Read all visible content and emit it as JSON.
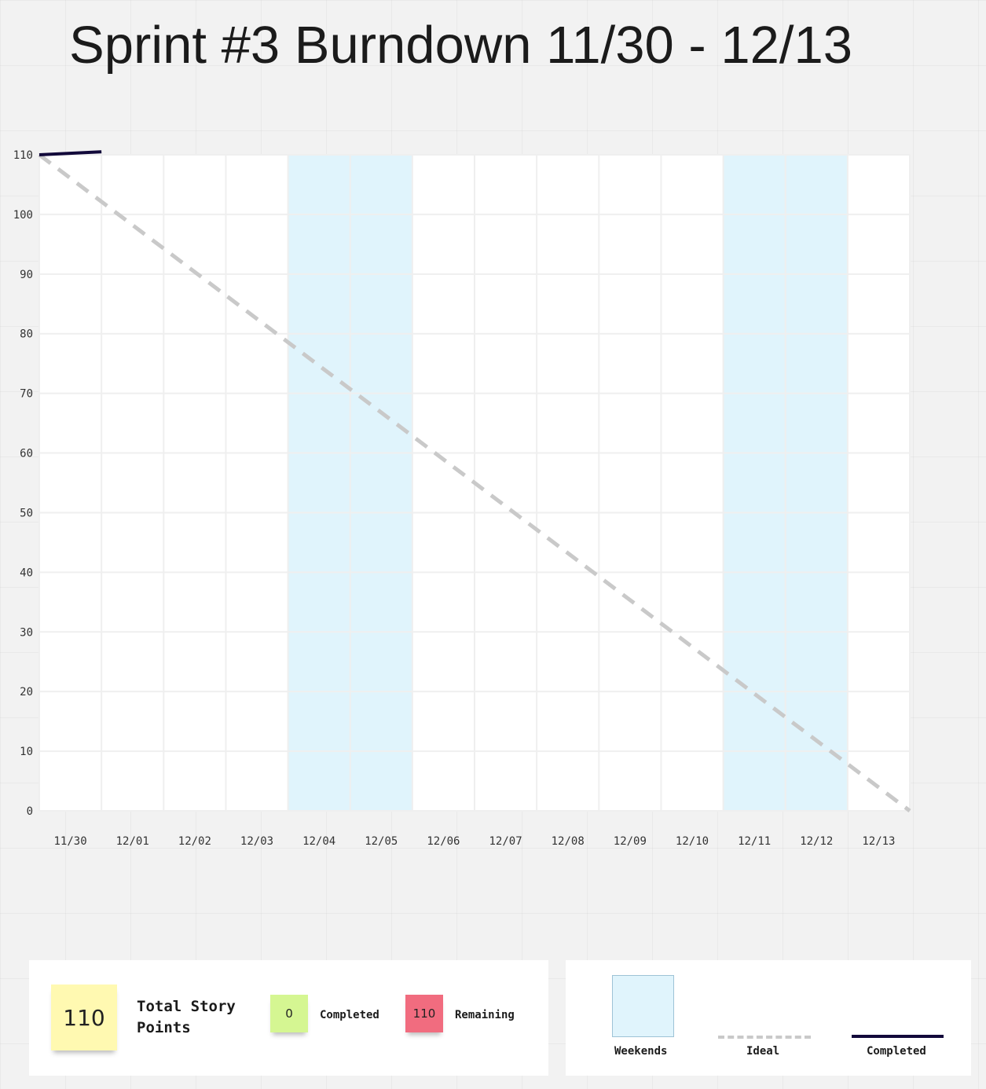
{
  "title": "Sprint #3 Burndown 11/30 - 12/13",
  "chart_data": {
    "type": "line",
    "title": "Sprint #3 Burndown 11/30 - 12/13",
    "xlabel": "",
    "ylabel": "",
    "categories": [
      "11/30",
      "12/01",
      "12/02",
      "12/03",
      "12/04",
      "12/05",
      "12/06",
      "12/07",
      "12/08",
      "12/09",
      "12/10",
      "12/11",
      "12/12",
      "12/13"
    ],
    "yticks": [
      0,
      10,
      20,
      30,
      40,
      50,
      60,
      70,
      80,
      90,
      100,
      110
    ],
    "ylim": [
      0,
      110
    ],
    "grid": true,
    "weekend_days": [
      "12/04",
      "12/05",
      "12/11",
      "12/12"
    ],
    "series": [
      {
        "name": "Ideal",
        "style": "dashed",
        "color": "#c9c9c9",
        "x": [
          "11/30",
          "12/13"
        ],
        "values": [
          110,
          0
        ],
        "x_end_edge": true
      },
      {
        "name": "Completed",
        "style": "solid",
        "color": "#12093a",
        "x": [
          "11/30",
          "12/01"
        ],
        "values": [
          110,
          110.5
        ]
      }
    ],
    "colors": {
      "weekend": "#e0f4fc",
      "grid": "#efefef",
      "plot_background": "#ffffff"
    }
  },
  "summary": {
    "total_value": "110",
    "total_label": "Total Story Points",
    "completed_value": "0",
    "completed_label": "Completed",
    "remaining_value": "110",
    "remaining_label": "Remaining"
  },
  "legend": {
    "weekends": "Weekends",
    "ideal": "Ideal",
    "completed": "Completed"
  }
}
